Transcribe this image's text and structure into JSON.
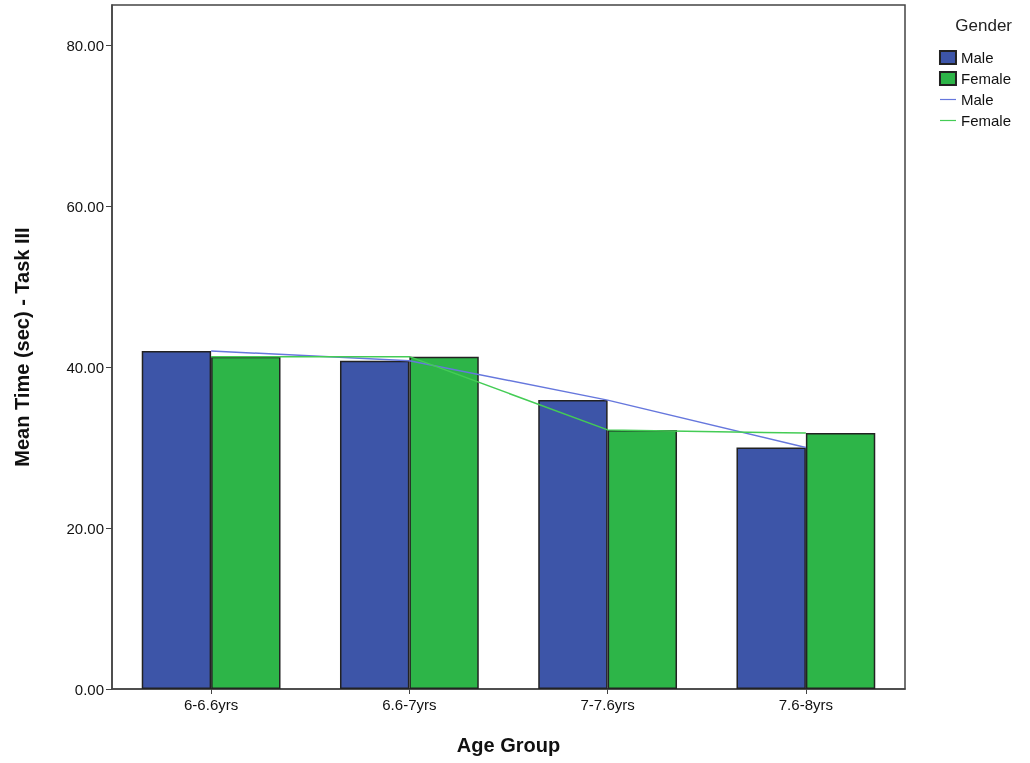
{
  "chart_data": {
    "type": "bar",
    "xlabel": "Age Group",
    "ylabel": "Mean Time (sec) - Task III",
    "legend_title": "Gender",
    "categories": [
      "6-6.6yrs",
      "6.6-7yrs",
      "7-7.6yrs",
      "7.6-8yrs"
    ],
    "series": [
      {
        "name": "Male",
        "color": "#3d55a8",
        "values": [
          42.0,
          40.8,
          35.9,
          30.0
        ]
      },
      {
        "name": "Female",
        "color": "#2db548",
        "values": [
          41.3,
          41.3,
          32.2,
          31.8
        ]
      },
      {
        "name": "Male",
        "type": "line",
        "color": "#6677dd",
        "values": [
          42.0,
          40.8,
          35.9,
          30.0
        ]
      },
      {
        "name": "Female",
        "type": "line",
        "color": "#44cc55",
        "values": [
          41.3,
          41.3,
          32.2,
          31.8
        ]
      }
    ],
    "ylim": [
      0,
      85
    ],
    "yticks": [
      {
        "value": 0,
        "label": "0.00"
      },
      {
        "value": 20,
        "label": "20.00"
      },
      {
        "value": 40,
        "label": "40.00"
      },
      {
        "value": 60,
        "label": "60.00"
      },
      {
        "value": 80,
        "label": "80.00"
      }
    ],
    "grid": false,
    "legend": "top right",
    "marker": "none"
  }
}
